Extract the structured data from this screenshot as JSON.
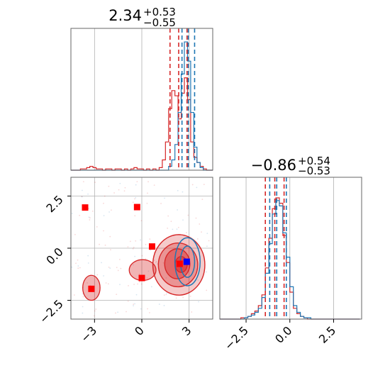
{
  "chart_data": {
    "type": "corner",
    "grid": true,
    "series": [
      {
        "color": "#d62728"
      },
      {
        "color": "#1f77b4"
      }
    ],
    "panels": {
      "top": {
        "type": "histogram",
        "title": {
          "value": "2.34",
          "plus": "+0.53",
          "minus": "−0.55"
        },
        "xlim": [
          -4.5,
          4.5
        ],
        "x_gridlines": [
          -3,
          0,
          3
        ],
        "bins_x": [
          -4.5,
          -4.3,
          -4.1,
          -3.9,
          -3.7,
          -3.5,
          -3.3,
          -3.1,
          -2.9,
          -2.7,
          -2.5,
          -2.3,
          -2.1,
          -1.9,
          -1.7,
          -1.5,
          -1.3,
          -1.1,
          -0.9,
          -0.7,
          -0.5,
          -0.3,
          -0.1,
          0.1,
          0.3,
          0.5,
          0.7,
          0.9,
          1.1,
          1.3,
          1.5,
          1.7,
          1.9,
          2.1,
          2.3,
          2.5,
          2.7,
          2.9,
          3.1,
          3.3,
          3.5,
          3.7,
          3.9,
          4.1,
          4.3,
          4.5
        ],
        "red_counts": [
          0,
          0,
          0,
          1,
          1,
          2,
          3,
          2,
          1,
          1,
          0,
          1,
          1,
          0,
          1,
          1,
          0,
          1,
          0,
          1,
          2,
          1,
          1,
          0,
          1,
          0,
          1,
          0,
          2,
          8,
          22,
          48,
          62,
          58,
          40,
          60,
          72,
          55,
          22,
          10,
          6,
          3,
          1,
          0,
          0
        ],
        "blue_counts": [
          0,
          0,
          0,
          0,
          0,
          0,
          0,
          0,
          0,
          0,
          0,
          0,
          0,
          0,
          0,
          0,
          0,
          0,
          0,
          0,
          0,
          0,
          0,
          0,
          0,
          0,
          0,
          0,
          0,
          0,
          0,
          3,
          8,
          20,
          45,
          75,
          100,
          85,
          45,
          18,
          6,
          2,
          0,
          0,
          0
        ],
        "ymax": 105,
        "red_quantiles": [
          1.79,
          2.34,
          2.87
        ],
        "blue_quantiles": [
          2.55,
          2.95,
          3.35
        ]
      },
      "bottom_right": {
        "type": "histogram",
        "title": {
          "value": "−0.86",
          "plus": "+0.54",
          "minus": "−0.53"
        },
        "xlim": [
          -4,
          4.1
        ],
        "x_gridlines": [
          -2.5,
          0,
          2.5
        ],
        "xticks": [
          {
            "value": -2.5,
            "label": "−2.5"
          },
          {
            "value": 0,
            "label": "0.0"
          },
          {
            "value": 2.5,
            "label": "2.5"
          }
        ],
        "bins_x": [
          -4,
          -3.8,
          -3.6,
          -3.4,
          -3.2,
          -3,
          -2.8,
          -2.6,
          -2.4,
          -2.2,
          -2,
          -1.8,
          -1.6,
          -1.4,
          -1.2,
          -1,
          -0.8,
          -0.6,
          -0.4,
          -0.2,
          0,
          0.2,
          0.4,
          0.6,
          0.8,
          1,
          1.2,
          1.4,
          1.6,
          1.8,
          2,
          2.2,
          2.4,
          2.6,
          2.8,
          3,
          3.2,
          3.4,
          3.6,
          3.8,
          4
        ],
        "red_counts": [
          0,
          0,
          0,
          0,
          0,
          0,
          1,
          1,
          2,
          4,
          6,
          10,
          18,
          38,
          60,
          82,
          90,
          86,
          62,
          42,
          20,
          8,
          4,
          2,
          1,
          0,
          0,
          0,
          0,
          0,
          0,
          0,
          0,
          0,
          0,
          0,
          0,
          0,
          0,
          0
        ],
        "blue_counts": [
          0,
          0,
          0,
          0,
          0,
          0,
          0,
          1,
          2,
          3,
          5,
          8,
          16,
          34,
          56,
          78,
          88,
          84,
          64,
          46,
          24,
          10,
          5,
          2,
          1,
          1,
          0,
          0,
          0,
          0,
          0,
          0,
          0,
          0,
          0,
          0,
          0,
          0,
          0,
          0
        ],
        "ymax": 100,
        "red_quantiles": [
          -1.4,
          -0.86,
          -0.33
        ],
        "blue_quantiles": [
          -1.15,
          -0.75,
          -0.2
        ]
      },
      "bottom_left": {
        "type": "scatter_contour",
        "xlim": [
          -4.5,
          4.5
        ],
        "ylim": [
          -3.4,
          3.4
        ],
        "x_gridlines": [
          -3,
          0,
          3
        ],
        "y_gridlines": [
          -2.5,
          0,
          2.5
        ],
        "xticks": [
          {
            "value": -3,
            "label": "−3"
          },
          {
            "value": 0,
            "label": "0"
          },
          {
            "value": 3,
            "label": "3"
          }
        ],
        "yticks": [
          {
            "value": 2.5,
            "label": "2.5"
          },
          {
            "value": 0,
            "label": "0.0"
          },
          {
            "value": -2.5,
            "label": "−2.5"
          }
        ],
        "red_markers": [
          [
            -3.6,
            1.95
          ],
          [
            -0.3,
            1.97
          ],
          [
            0.65,
            0.08
          ],
          [
            0.0,
            -1.43
          ],
          [
            -3.2,
            -1.95
          ],
          [
            2.4,
            -0.75
          ]
        ],
        "blue_markers": [
          [
            2.85,
            -0.65
          ]
        ],
        "red_contours": [
          {
            "cx": 2.35,
            "cy": -0.8,
            "rx": 1.65,
            "ry": 1.45,
            "opacity": 0.45
          },
          {
            "cx": 2.3,
            "cy": -0.8,
            "rx": 1.25,
            "ry": 1.05,
            "opacity": 0.6
          },
          {
            "cx": 2.25,
            "cy": -0.75,
            "rx": 0.8,
            "ry": 0.72,
            "opacity": 0.75
          },
          {
            "cx": 2.5,
            "cy": -0.78,
            "rx": 0.38,
            "ry": 0.38,
            "opacity": 0.9
          }
        ],
        "blue_contours": [
          {
            "cx": 2.9,
            "cy": -0.65,
            "rx": 0.8,
            "ry": 1.15
          },
          {
            "cx": 2.9,
            "cy": -0.65,
            "rx": 0.45,
            "ry": 0.75
          }
        ],
        "red_islands": [
          {
            "cx": -3.2,
            "cy": -1.9,
            "rx": 0.55,
            "ry": 0.6
          },
          {
            "cx": 0.05,
            "cy": -1.05,
            "rx": 0.85,
            "ry": 0.5
          }
        ]
      }
    }
  }
}
